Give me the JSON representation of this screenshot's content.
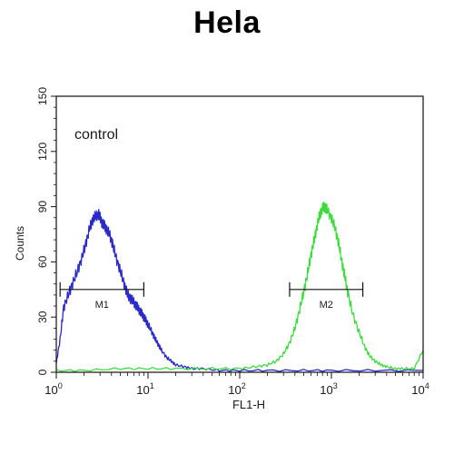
{
  "chart_data": {
    "type": "line",
    "title": "Hela",
    "xlabel": "FL1-H",
    "ylabel": "Counts",
    "xscale": "log",
    "xlim": [
      1,
      10000
    ],
    "ylim": [
      0,
      150
    ],
    "x_ticks": [
      {
        "value": 1,
        "base": "10",
        "exp": "0"
      },
      {
        "value": 10,
        "base": "10",
        "exp": "1"
      },
      {
        "value": 100,
        "base": "10",
        "exp": "2"
      },
      {
        "value": 1000,
        "base": "10",
        "exp": "3"
      },
      {
        "value": 10000,
        "base": "10",
        "exp": "4"
      }
    ],
    "y_ticks": [
      "0",
      "30",
      "60",
      "90",
      "120",
      "150"
    ],
    "annotation": "control",
    "grid": false,
    "series": [
      {
        "color": "#2a2ac8",
        "x": [
          1.0,
          1.1,
          1.2,
          1.35,
          1.5,
          1.7,
          1.9,
          2.1,
          2.3,
          2.5,
          2.7,
          2.9,
          3.1,
          3.3,
          3.5,
          3.8,
          4.1,
          4.5,
          5.0,
          5.5,
          6.0,
          6.5,
          7.0,
          7.5,
          8.0,
          8.5,
          9.0,
          9.5,
          10.0,
          11.0,
          12.0,
          13.0,
          14.0,
          16.0,
          18.0,
          20.0,
          25.0,
          30.0,
          40.0,
          60.0,
          100.0,
          200.0,
          500.0,
          1000.0,
          3000.0,
          10000.0
        ],
        "y": [
          5,
          18,
          35,
          42,
          48,
          55,
          62,
          70,
          78,
          83,
          85,
          86,
          82,
          80,
          78,
          75,
          70,
          62,
          55,
          48,
          42,
          40,
          38,
          36,
          34,
          32,
          30,
          28,
          26,
          22,
          18,
          15,
          12,
          8,
          6,
          4,
          3,
          2,
          2,
          1,
          1,
          1,
          1,
          1,
          1,
          1
        ]
      },
      {
        "color": "#3ddc3d",
        "x": [
          1.0,
          2.0,
          5.0,
          10.0,
          20.0,
          50.0,
          100.0,
          150.0,
          200.0,
          250.0,
          300.0,
          350.0,
          400.0,
          450.0,
          500.0,
          550.0,
          600.0,
          650.0,
          700.0,
          750.0,
          800.0,
          850.0,
          900.0,
          1000.0,
          1100.0,
          1200.0,
          1300.0,
          1400.0,
          1500.0,
          1700.0,
          2000.0,
          2300.0,
          2600.0,
          3000.0,
          3500.0,
          4000.0,
          5000.0,
          6000.0,
          8000.0,
          10000.0
        ],
        "y": [
          1,
          1,
          2,
          2,
          2,
          2,
          2,
          3,
          4,
          6,
          10,
          16,
          24,
          34,
          44,
          54,
          64,
          72,
          80,
          86,
          89,
          90,
          88,
          84,
          78,
          70,
          60,
          52,
          44,
          32,
          22,
          14,
          9,
          6,
          4,
          3,
          2,
          2,
          2,
          12
        ]
      }
    ],
    "gates": [
      {
        "label": "M1",
        "x_start": 1.1,
        "x_end": 9.0,
        "y": 45
      },
      {
        "label": "M2",
        "x_start": 350,
        "x_end": 2200,
        "y": 45
      }
    ]
  }
}
